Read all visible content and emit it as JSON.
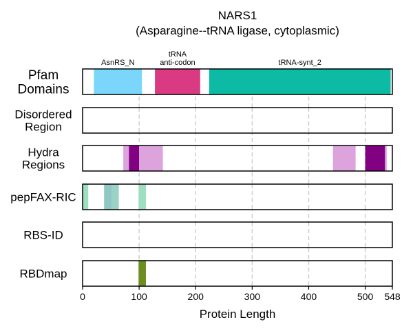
{
  "chart_data": {
    "type": "bar",
    "title_line1": "NARS1",
    "title_line2": "(Asparagine--tRNA ligase, cytoplasmic)",
    "xlabel": "Protein Length",
    "xlim": [
      0,
      548
    ],
    "xticks": [
      0,
      100,
      200,
      300,
      400,
      500,
      548
    ],
    "grid": "vertical dashed at 100, 200, 300, 400, 500",
    "tracks": [
      {
        "name_lines": [
          "Pfam",
          "Domains"
        ],
        "segments": [
          {
            "start": 20,
            "end": 105,
            "color": "#7ad6fa",
            "label_lines": [
              "AsnRS_N"
            ]
          },
          {
            "start": 128,
            "end": 208,
            "color": "#d93a82",
            "label_lines": [
              "tRNA",
              "anti-codon"
            ]
          },
          {
            "start": 224,
            "end": 545,
            "color": "#0dbaa3",
            "label_lines": [
              "tRNA-synt_2"
            ]
          }
        ]
      },
      {
        "name_lines": [
          "Disordered",
          "Region"
        ],
        "segments": []
      },
      {
        "name_lines": [
          "Hydra",
          "Regions"
        ],
        "segments": [
          {
            "start": 72,
            "end": 82,
            "color": "#dda3dd"
          },
          {
            "start": 82,
            "end": 100,
            "color": "#820082"
          },
          {
            "start": 100,
            "end": 142,
            "color": "#dda3dd"
          },
          {
            "start": 443,
            "end": 483,
            "color": "#dda3dd"
          },
          {
            "start": 500,
            "end": 535,
            "color": "#820082"
          },
          {
            "start": 535,
            "end": 538,
            "color": "#dda3dd"
          }
        ]
      },
      {
        "name_lines": [
          "pepFAX-RIC"
        ],
        "segments": [
          {
            "start": 0,
            "end": 10,
            "color": "#9ddfbf"
          },
          {
            "start": 38,
            "end": 52,
            "color": "#8fc7c3"
          },
          {
            "start": 52,
            "end": 64,
            "color": "#9ad3c5"
          },
          {
            "start": 99,
            "end": 112,
            "color": "#9ddfbf"
          }
        ]
      },
      {
        "name_lines": [
          "RBS-ID"
        ],
        "segments": []
      },
      {
        "name_lines": [
          "RBDmap"
        ],
        "segments": [
          {
            "start": 99,
            "end": 112,
            "color": "#6b8e23"
          }
        ]
      }
    ]
  }
}
